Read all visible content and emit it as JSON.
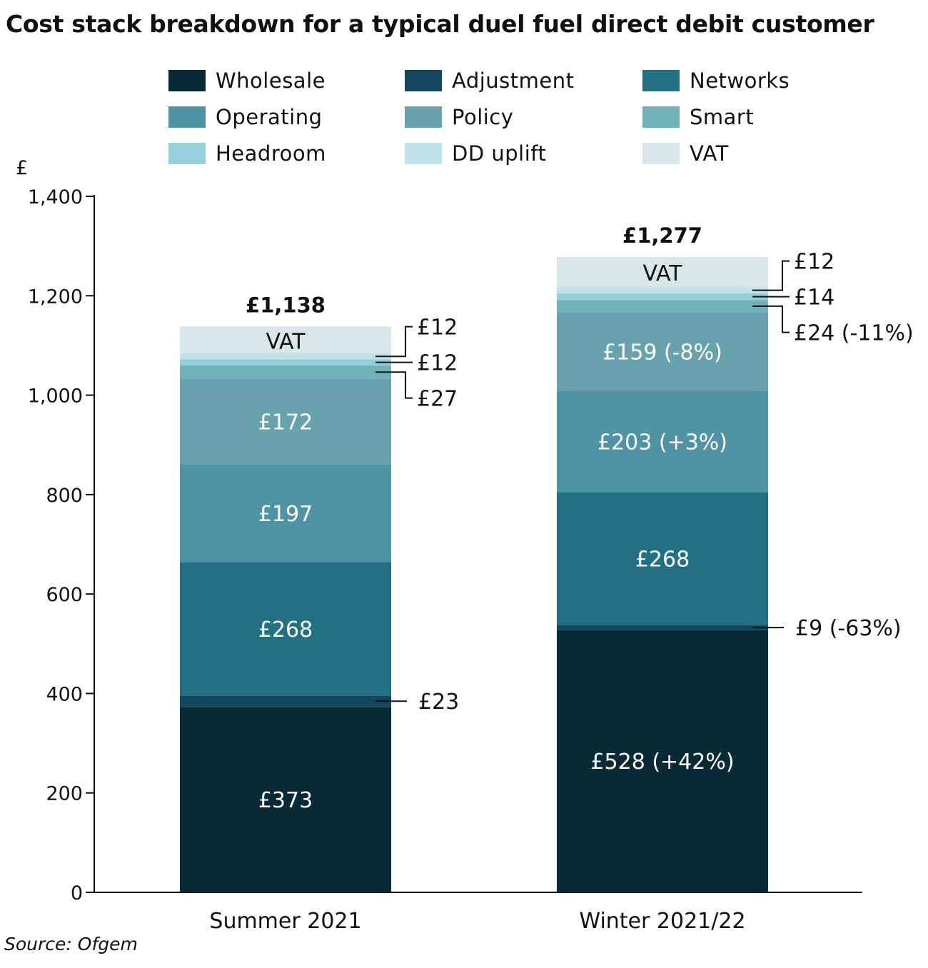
{
  "title": "Cost stack breakdown for a typical duel fuel direct debit customer",
  "source": "Source: Ofgem",
  "chart_data": {
    "type": "bar",
    "stacked": true,
    "title": "Cost stack breakdown for a typical duel fuel direct debit customer",
    "ylabel": "£",
    "ylim": [
      0,
      1400
    ],
    "yticks": [
      0,
      200,
      400,
      600,
      800,
      1000,
      1200,
      1400
    ],
    "ytick_labels": [
      "0",
      "200",
      "400",
      "600",
      "800",
      "1,000",
      "1,200",
      "1,400"
    ],
    "categories": [
      "Summer 2021",
      "Winter 2021/22"
    ],
    "totals": [
      1138,
      1277
    ],
    "total_labels": [
      "£1,138",
      "£1,277"
    ],
    "legend_placement": "top",
    "series": [
      {
        "name": "Wholesale",
        "color": "#082a36",
        "values": [
          373,
          528
        ],
        "labels": [
          "£373",
          "£528 (+42%)"
        ],
        "label_color": "#ffffff"
      },
      {
        "name": "Adjustment",
        "color": "#12475f",
        "values": [
          23,
          9
        ],
        "labels": [
          "£23",
          "£9 (-63%)"
        ],
        "label_color": "#ffffff"
      },
      {
        "name": "Networks",
        "color": "#237083",
        "values": [
          268,
          268
        ],
        "labels": [
          "£268",
          "£268"
        ],
        "label_color": "#ffffff"
      },
      {
        "name": "Operating",
        "color": "#4f93a5",
        "values": [
          197,
          203
        ],
        "labels": [
          "£197",
          "£203 (+3%)"
        ],
        "label_color": "#ffffff"
      },
      {
        "name": "Policy",
        "color": "#68a3ad",
        "values": [
          172,
          159
        ],
        "labels": [
          "£172",
          "£159  (-8%)"
        ],
        "label_color": "#ffffff"
      },
      {
        "name": "Smart",
        "color": "#71b2b9",
        "values": [
          27,
          24
        ],
        "labels": [
          "£27",
          "£24 (-11%)"
        ],
        "label_color": "#111111"
      },
      {
        "name": "Headroom",
        "color": "#95cfda",
        "values": [
          12,
          14
        ],
        "labels": [
          "£12",
          "£14"
        ],
        "label_color": "#111111"
      },
      {
        "name": "DD uplift",
        "color": "#bee3e8",
        "values": [
          12,
          12
        ],
        "labels": [
          "£12",
          "£12"
        ],
        "label_color": "#111111"
      },
      {
        "name": "VAT",
        "color": "#d9e7ea",
        "values": [
          54,
          61
        ],
        "labels": [
          "VAT",
          "VAT"
        ],
        "label_color": "#111111"
      }
    ]
  }
}
